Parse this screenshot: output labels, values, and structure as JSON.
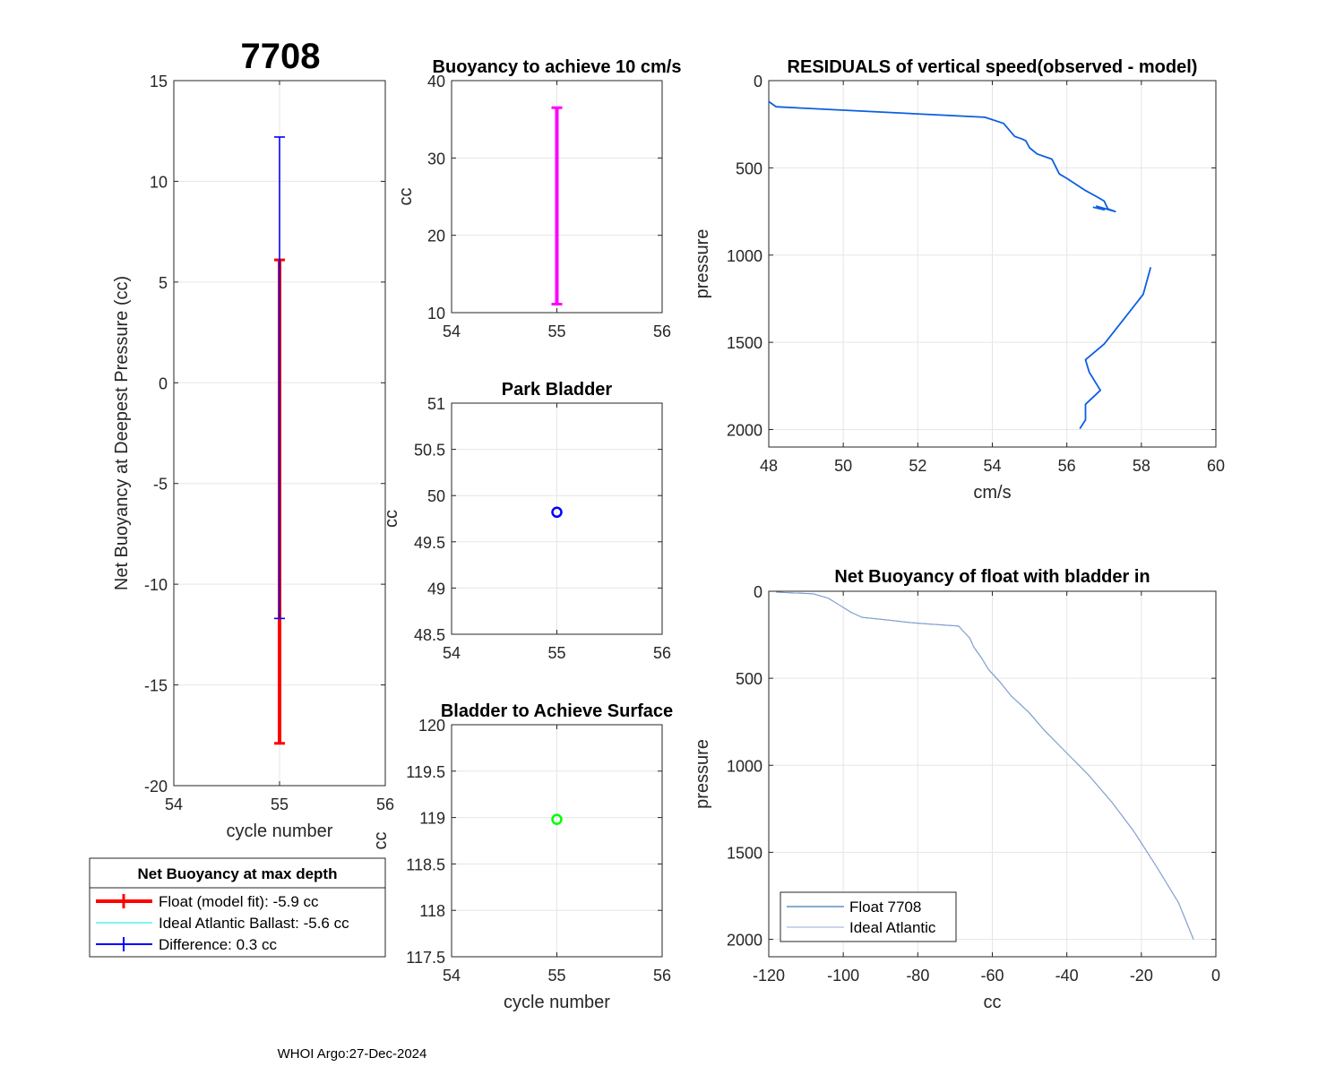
{
  "figure_title": "7708",
  "footer": "WHOI Argo:27-Dec-2024",
  "legend_left": {
    "title": "Net Buoyancy at max depth",
    "items": [
      {
        "label": "Float (model fit):  -5.9 cc",
        "color": "#ff0000"
      },
      {
        "label": "Ideal Atlantic Ballast:  -5.6 cc",
        "color": "#00e5e5"
      },
      {
        "label": "Difference:   0.3 cc",
        "color": "#0000ff"
      }
    ]
  },
  "legend_right": {
    "items": [
      {
        "label": "Float 7708",
        "color": "#0a5aa0"
      },
      {
        "label": "Ideal Atlantic",
        "color": "#9aa8d8"
      }
    ]
  },
  "chart_data": [
    {
      "id": "net-buoyancy",
      "type": "errorbar",
      "title": "",
      "xlabel": "cycle number",
      "ylabel": "Net Buoyancy at Deepest Pressure (cc)",
      "xlim": [
        54,
        56
      ],
      "ylim": [
        -20,
        15
      ],
      "xticks": [
        "54",
        "55",
        "56"
      ],
      "yticks": [
        "15",
        "10",
        "5",
        "0",
        "-5",
        "-10",
        "-15",
        "-20"
      ],
      "series": [
        {
          "name": "Float (model fit)",
          "x": 55,
          "center": -5.9,
          "low": -17.9,
          "high": 6.1,
          "color": "#ff0000"
        },
        {
          "name": "Difference",
          "x": 55,
          "center": 0.3,
          "low": -11.7,
          "high": 12.2,
          "color": "#0000ff"
        }
      ]
    },
    {
      "id": "buoyancy-10cms",
      "type": "errorbar",
      "title": "Buoyancy to achieve 10 cm/s",
      "xlabel": "",
      "ylabel": "cc",
      "xlim": [
        54,
        56
      ],
      "ylim": [
        10,
        40
      ],
      "xticks": [
        "54",
        "55",
        "56"
      ],
      "yticks": [
        "40",
        "30",
        "20",
        "10"
      ],
      "series": [
        {
          "name": "buoyancy",
          "x": 55,
          "low": 11.1,
          "high": 36.5,
          "color": "#ff00ff"
        }
      ]
    },
    {
      "id": "park-bladder",
      "type": "scatter",
      "title": "Park Bladder",
      "xlabel": "",
      "ylabel": "cc",
      "xlim": [
        54,
        56
      ],
      "ylim": [
        48.5,
        51
      ],
      "xticks": [
        "54",
        "55",
        "56"
      ],
      "yticks": [
        "51",
        "50.5",
        "50",
        "49.5",
        "49",
        "48.5"
      ],
      "series": [
        {
          "name": "park",
          "x": [
            55
          ],
          "y": [
            49.82
          ],
          "color": "#0000ff"
        }
      ]
    },
    {
      "id": "bladder-surface",
      "type": "scatter",
      "title": "Bladder to Achieve Surface",
      "xlabel": "cycle number",
      "ylabel": "cc",
      "xlim": [
        54,
        56
      ],
      "ylim": [
        117.5,
        120
      ],
      "xticks": [
        "54",
        "55",
        "56"
      ],
      "yticks": [
        "120",
        "119.5",
        "119",
        "118.5",
        "118",
        "117.5"
      ],
      "series": [
        {
          "name": "surface",
          "x": [
            55
          ],
          "y": [
            118.98
          ],
          "color": "#00ff00"
        }
      ]
    },
    {
      "id": "residuals",
      "type": "line",
      "title": "RESIDUALS of vertical speed(observed - model)",
      "xlabel": "cm/s",
      "ylabel": "pressure",
      "xlim": [
        48,
        60
      ],
      "ylim": [
        0,
        2100
      ],
      "y_reversed": true,
      "xticks": [
        "48",
        "50",
        "52",
        "54",
        "56",
        "58",
        "60"
      ],
      "yticks": [
        "0",
        "500",
        "1000",
        "1500",
        "2000"
      ],
      "series": [
        {
          "name": "upper",
          "color": "#0b5fe0",
          "x": [
            48.0,
            48.2,
            53.8,
            54.3,
            54.6,
            54.8,
            54.9,
            55.0,
            55.2,
            55.6,
            55.8,
            56.0,
            56.5,
            56.8,
            57.0,
            57.1,
            57.3,
            56.8,
            57.0,
            56.7
          ],
          "y": [
            120,
            150,
            210,
            245,
            320,
            335,
            345,
            385,
            420,
            450,
            535,
            560,
            630,
            665,
            690,
            735,
            750,
            720,
            740,
            725
          ]
        },
        {
          "name": "lower",
          "color": "#0b5fe0",
          "x": [
            58.25,
            58.05,
            57.5,
            57.0,
            56.5,
            56.6,
            56.9,
            56.5,
            56.5,
            56.35
          ],
          "y": [
            1070,
            1225,
            1375,
            1510,
            1600,
            1670,
            1775,
            1855,
            1945,
            1995
          ]
        }
      ]
    },
    {
      "id": "net-buoyancy-bladder-in",
      "type": "line",
      "title": "Net Buoyancy of float with bladder in",
      "xlabel": "cc",
      "ylabel": "pressure",
      "xlim": [
        -120,
        0
      ],
      "ylim": [
        0,
        2100
      ],
      "y_reversed": true,
      "xticks": [
        "-120",
        "-100",
        "-80",
        "-60",
        "-40",
        "-20",
        "0"
      ],
      "yticks": [
        "0",
        "500",
        "1000",
        "1500",
        "2000"
      ],
      "legend_location": "bottom-left",
      "series": [
        {
          "name": "Float 7708",
          "color": "#0a5aa0",
          "x": [
            -118,
            -108,
            -104,
            -101,
            -98,
            -95,
            -88,
            -82,
            -76,
            -69,
            -68,
            -66,
            -65,
            -63,
            -61,
            -58,
            -55,
            -50,
            -46,
            -40,
            -34,
            -28,
            -22,
            -16,
            -10,
            -6
          ],
          "y": [
            5,
            15,
            40,
            80,
            120,
            150,
            165,
            180,
            190,
            200,
            225,
            270,
            320,
            380,
            450,
            520,
            600,
            700,
            800,
            930,
            1060,
            1210,
            1380,
            1580,
            1790,
            2000
          ]
        },
        {
          "name": "Ideal Atlantic",
          "color": "#9aa8d8",
          "x": [
            -118,
            -108,
            -104,
            -101,
            -98,
            -95,
            -88,
            -82,
            -76,
            -69,
            -68,
            -66,
            -65,
            -63,
            -61,
            -58,
            -55,
            -50,
            -46,
            -40,
            -34,
            -28,
            -22,
            -16,
            -10,
            -6
          ],
          "y": [
            5,
            15,
            40,
            80,
            120,
            150,
            165,
            180,
            190,
            200,
            225,
            270,
            320,
            380,
            450,
            520,
            600,
            700,
            800,
            930,
            1060,
            1210,
            1380,
            1580,
            1790,
            2000
          ]
        }
      ]
    }
  ]
}
